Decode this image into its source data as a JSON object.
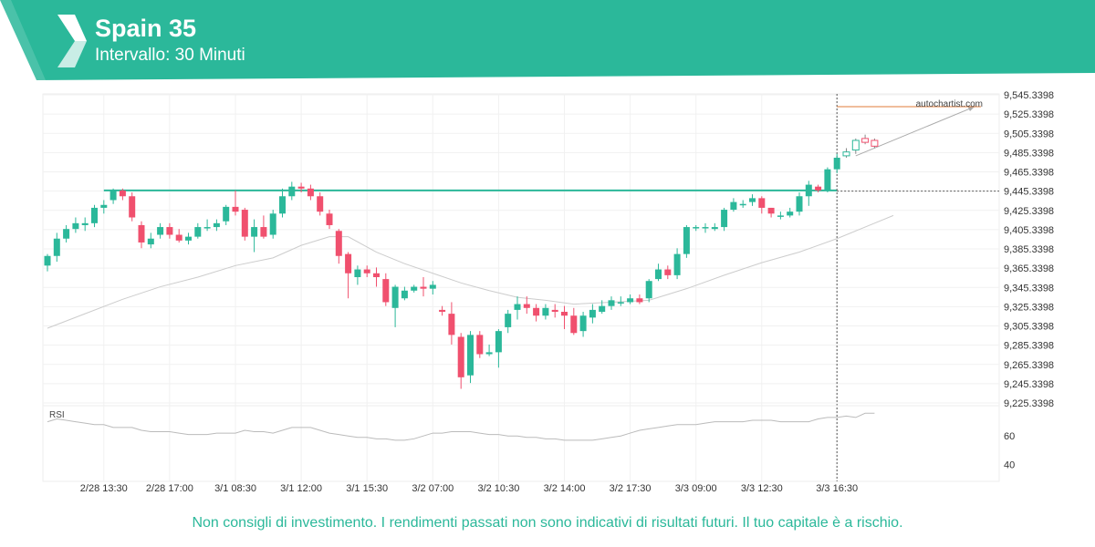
{
  "header": {
    "title": "Spain 35",
    "subtitle": "Intervallo: 30 Minuti",
    "brand_color": "#2bb89a"
  },
  "watermark": "autochartist.com",
  "rsi_label": "RSI",
  "disclaimer": "Non consigli di investimento. I rendimenti passati non sono indicativi di risultati futuri. Il tuo capitale è a rischio.",
  "chart_data": {
    "type": "candlestick",
    "colors": {
      "up": "#2bb89a",
      "down": "#f0506e",
      "level": "#2bb89a",
      "projection": "#e07b39",
      "ma": "#cccccc",
      "rsi": "#bbbbbb"
    },
    "y_ticks": [
      "9,545.3398",
      "9,525.3398",
      "9,505.3398",
      "9,485.3398",
      "9,465.3398",
      "9,445.3398",
      "9,425.3398",
      "9,405.3398",
      "9,385.3398",
      "9,365.3398",
      "9,345.3398",
      "9,325.3398",
      "9,305.3398",
      "9,285.3398",
      "9,265.3398",
      "9,245.3398",
      "9,225.3398"
    ],
    "y_tick_values": [
      9545.3398,
      9525.3398,
      9505.3398,
      9485.3398,
      9465.3398,
      9445.3398,
      9425.3398,
      9405.3398,
      9385.3398,
      9365.3398,
      9345.3398,
      9325.3398,
      9305.3398,
      9285.3398,
      9265.3398,
      9245.3398,
      9225.3398
    ],
    "x_ticks": [
      {
        "label": "2/28 13:30",
        "index": 6
      },
      {
        "label": "2/28 17:00",
        "index": 13
      },
      {
        "label": "3/1 08:30",
        "index": 20
      },
      {
        "label": "3/1 12:00",
        "index": 27
      },
      {
        "label": "3/1 15:30",
        "index": 34
      },
      {
        "label": "3/2 07:00",
        "index": 41
      },
      {
        "label": "3/2 10:30",
        "index": 48
      },
      {
        "label": "3/2 14:00",
        "index": 55
      },
      {
        "label": "3/2 17:30",
        "index": 62
      },
      {
        "label": "3/3 09:00",
        "index": 69
      },
      {
        "label": "3/3 12:30",
        "index": 76
      },
      {
        "label": "3/3 16:30",
        "index": 84
      }
    ],
    "level": 9446,
    "signal_index": 84,
    "current_price_level": 9445.3398,
    "projection": {
      "from_index": 86,
      "from_value": 9482,
      "to_value": 9533,
      "target_value": 9533
    },
    "candles": [
      [
        9368,
        9378,
        9362,
        9380
      ],
      [
        9378,
        9396,
        9372,
        9402
      ],
      [
        9396,
        9406,
        9392,
        9410
      ],
      [
        9406,
        9412,
        9402,
        9418
      ],
      [
        9410,
        9412,
        9404,
        9418
      ],
      [
        9412,
        9428,
        9408,
        9431
      ],
      [
        9428,
        9431,
        9422,
        9436
      ],
      [
        9436,
        9446,
        9432,
        9448
      ],
      [
        9446,
        9440,
        9436,
        9448
      ],
      [
        9440,
        9418,
        9414,
        9444
      ],
      [
        9410,
        9392,
        9386,
        9414
      ],
      [
        9390,
        9396,
        9386,
        9402
      ],
      [
        9400,
        9408,
        9396,
        9412
      ],
      [
        9408,
        9400,
        9396,
        9412
      ],
      [
        9400,
        9394,
        9392,
        9406
      ],
      [
        9394,
        9398,
        9390,
        9402
      ],
      [
        9398,
        9408,
        9396,
        9412
      ],
      [
        9408,
        9408,
        9404,
        9416
      ],
      [
        9408,
        9412,
        9404,
        9416
      ],
      [
        9414,
        9429,
        9410,
        9431
      ],
      [
        9429,
        9424,
        9420,
        9446
      ],
      [
        9426,
        9398,
        9394,
        9428
      ],
      [
        9398,
        9408,
        9382,
        9416
      ],
      [
        9408,
        9398,
        9396,
        9420
      ],
      [
        9400,
        9422,
        9396,
        9426
      ],
      [
        9422,
        9440,
        9418,
        9448
      ],
      [
        9440,
        9450,
        9436,
        9455
      ],
      [
        9450,
        9448,
        9444,
        9454
      ],
      [
        9448,
        9440,
        9436,
        9452
      ],
      [
        9440,
        9424,
        9420,
        9444
      ],
      [
        9422,
        9410,
        9406,
        9426
      ],
      [
        9404,
        9378,
        9370,
        9406
      ],
      [
        9380,
        9360,
        9334,
        9382
      ],
      [
        9356,
        9364,
        9348,
        9368
      ],
      [
        9364,
        9360,
        9356,
        9368
      ],
      [
        9360,
        9356,
        9346,
        9366
      ],
      [
        9354,
        9330,
        9326,
        9360
      ],
      [
        9324,
        9346,
        9304,
        9348
      ],
      [
        9334,
        9342,
        9332,
        9346
      ],
      [
        9342,
        9346,
        9340,
        9348
      ],
      [
        9346,
        9344,
        9336,
        9356
      ],
      [
        9344,
        9348,
        9338,
        9352
      ],
      [
        9322,
        9320,
        9316,
        9326
      ],
      [
        9318,
        9296,
        9286,
        9330
      ],
      [
        9294,
        9252,
        9240,
        9298
      ],
      [
        9254,
        9296,
        9246,
        9300
      ],
      [
        9296,
        9276,
        9272,
        9300
      ],
      [
        9276,
        9278,
        9274,
        9286
      ],
      [
        9278,
        9300,
        9262,
        9302
      ],
      [
        9304,
        9318,
        9298,
        9322
      ],
      [
        9322,
        9328,
        9312,
        9336
      ],
      [
        9328,
        9324,
        9318,
        9336
      ],
      [
        9324,
        9316,
        9310,
        9328
      ],
      [
        9316,
        9324,
        9312,
        9328
      ],
      [
        9322,
        9320,
        9314,
        9328
      ],
      [
        9320,
        9316,
        9302,
        9326
      ],
      [
        9316,
        9298,
        9296,
        9324
      ],
      [
        9300,
        9316,
        9294,
        9320
      ],
      [
        9314,
        9322,
        9308,
        9328
      ],
      [
        9320,
        9326,
        9318,
        9332
      ],
      [
        9326,
        9332,
        9322,
        9336
      ],
      [
        9330,
        9330,
        9326,
        9336
      ],
      [
        9330,
        9334,
        9328,
        9338
      ],
      [
        9334,
        9330,
        9328,
        9338
      ],
      [
        9334,
        9352,
        9330,
        9354
      ],
      [
        9354,
        9364,
        9352,
        9370
      ],
      [
        9364,
        9358,
        9354,
        9368
      ],
      [
        9358,
        9380,
        9354,
        9386
      ],
      [
        9380,
        9408,
        9376,
        9410
      ],
      [
        9408,
        9408,
        9404,
        9410
      ],
      [
        9408,
        9408,
        9402,
        9412
      ],
      [
        9406,
        9408,
        9404,
        9412
      ],
      [
        9408,
        9426,
        9404,
        9428
      ],
      [
        9426,
        9434,
        9424,
        9438
      ],
      [
        9432,
        9432,
        9428,
        9436
      ],
      [
        9434,
        9438,
        9430,
        9442
      ],
      [
        9438,
        9428,
        9422,
        9440
      ],
      [
        9428,
        9422,
        9418,
        9428
      ],
      [
        9420,
        9420,
        9416,
        9424
      ],
      [
        9420,
        9424,
        9418,
        9428
      ],
      [
        9424,
        9440,
        9420,
        9444
      ],
      [
        9440,
        9452,
        9430,
        9456
      ],
      [
        9450,
        9446,
        9444,
        9452
      ],
      [
        9446,
        9468,
        9444,
        9470
      ],
      [
        9468,
        9480,
        9464,
        9484
      ],
      [
        9482,
        9486,
        9480,
        9490
      ],
      [
        9488,
        9498,
        9484,
        9500
      ],
      [
        9500,
        9496,
        9494,
        9504
      ],
      [
        9498,
        9492,
        9490,
        9500
      ]
    ],
    "ma": [
      [
        0,
        9303
      ],
      [
        4,
        9318
      ],
      [
        8,
        9333
      ],
      [
        12,
        9346
      ],
      [
        16,
        9356
      ],
      [
        20,
        9368
      ],
      [
        24,
        9376
      ],
      [
        27,
        9389
      ],
      [
        30,
        9398
      ],
      [
        32,
        9398
      ],
      [
        35,
        9382
      ],
      [
        38,
        9370
      ],
      [
        41,
        9360
      ],
      [
        44,
        9350
      ],
      [
        47,
        9342
      ],
      [
        50,
        9335
      ],
      [
        53,
        9332
      ],
      [
        56,
        9328
      ],
      [
        60,
        9330
      ],
      [
        64,
        9332
      ],
      [
        68,
        9344
      ],
      [
        72,
        9358
      ],
      [
        76,
        9371
      ],
      [
        80,
        9382
      ],
      [
        84,
        9396
      ],
      [
        88,
        9412
      ],
      [
        90,
        9420
      ]
    ],
    "rsi": {
      "ticks": [
        60,
        40
      ],
      "range": [
        30,
        80
      ],
      "values": [
        70,
        72,
        71,
        70,
        69,
        68,
        68,
        66,
        66,
        66,
        64,
        63,
        63,
        63,
        62,
        61,
        61,
        61,
        62,
        62,
        62,
        64,
        63,
        63,
        62,
        64,
        66,
        66,
        66,
        64,
        62,
        61,
        60,
        59,
        59,
        58,
        58,
        57,
        57,
        58,
        60,
        62,
        62,
        63,
        63,
        63,
        62,
        61,
        61,
        60,
        60,
        59,
        59,
        58,
        58,
        57,
        57,
        57,
        57,
        58,
        59,
        60,
        62,
        64,
        65,
        66,
        67,
        68,
        68,
        68,
        69,
        70,
        70,
        70,
        70,
        71,
        71,
        71,
        70,
        70,
        70,
        70,
        72,
        73,
        73,
        74,
        73,
        76,
        76
      ]
    }
  }
}
